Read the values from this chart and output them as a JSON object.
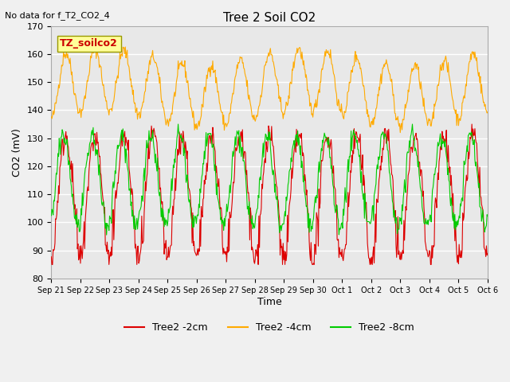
{
  "title": "Tree 2 Soil CO2",
  "subtitle": "No data for f_T2_CO2_4",
  "ylabel": "CO2 (mV)",
  "xlabel": "Time",
  "ylim": [
    80,
    170
  ],
  "yticks": [
    80,
    90,
    100,
    110,
    120,
    130,
    140,
    150,
    160,
    170
  ],
  "xtick_labels": [
    "Sep 21",
    "Sep 22",
    "Sep 23",
    "Sep 24",
    "Sep 25",
    "Sep 26",
    "Sep 27",
    "Sep 28",
    "Sep 29",
    "Sep 30",
    "Oct 1",
    "Oct 2",
    "Oct 3",
    "Oct 4",
    "Oct 5",
    "Oct 6"
  ],
  "legend_labels": [
    "Tree2 -2cm",
    "Tree2 -4cm",
    "Tree2 -8cm"
  ],
  "line_colors": [
    "#dd0000",
    "#ffaa00",
    "#00cc00"
  ],
  "bg_color": "#e8e8e8",
  "fig_bg_color": "#f0f0f0",
  "annotation_box_color": "#ffff99",
  "annotation_text": "TZ_soilco2",
  "annotation_text_color": "#cc0000",
  "num_days": 15,
  "seed": 42
}
